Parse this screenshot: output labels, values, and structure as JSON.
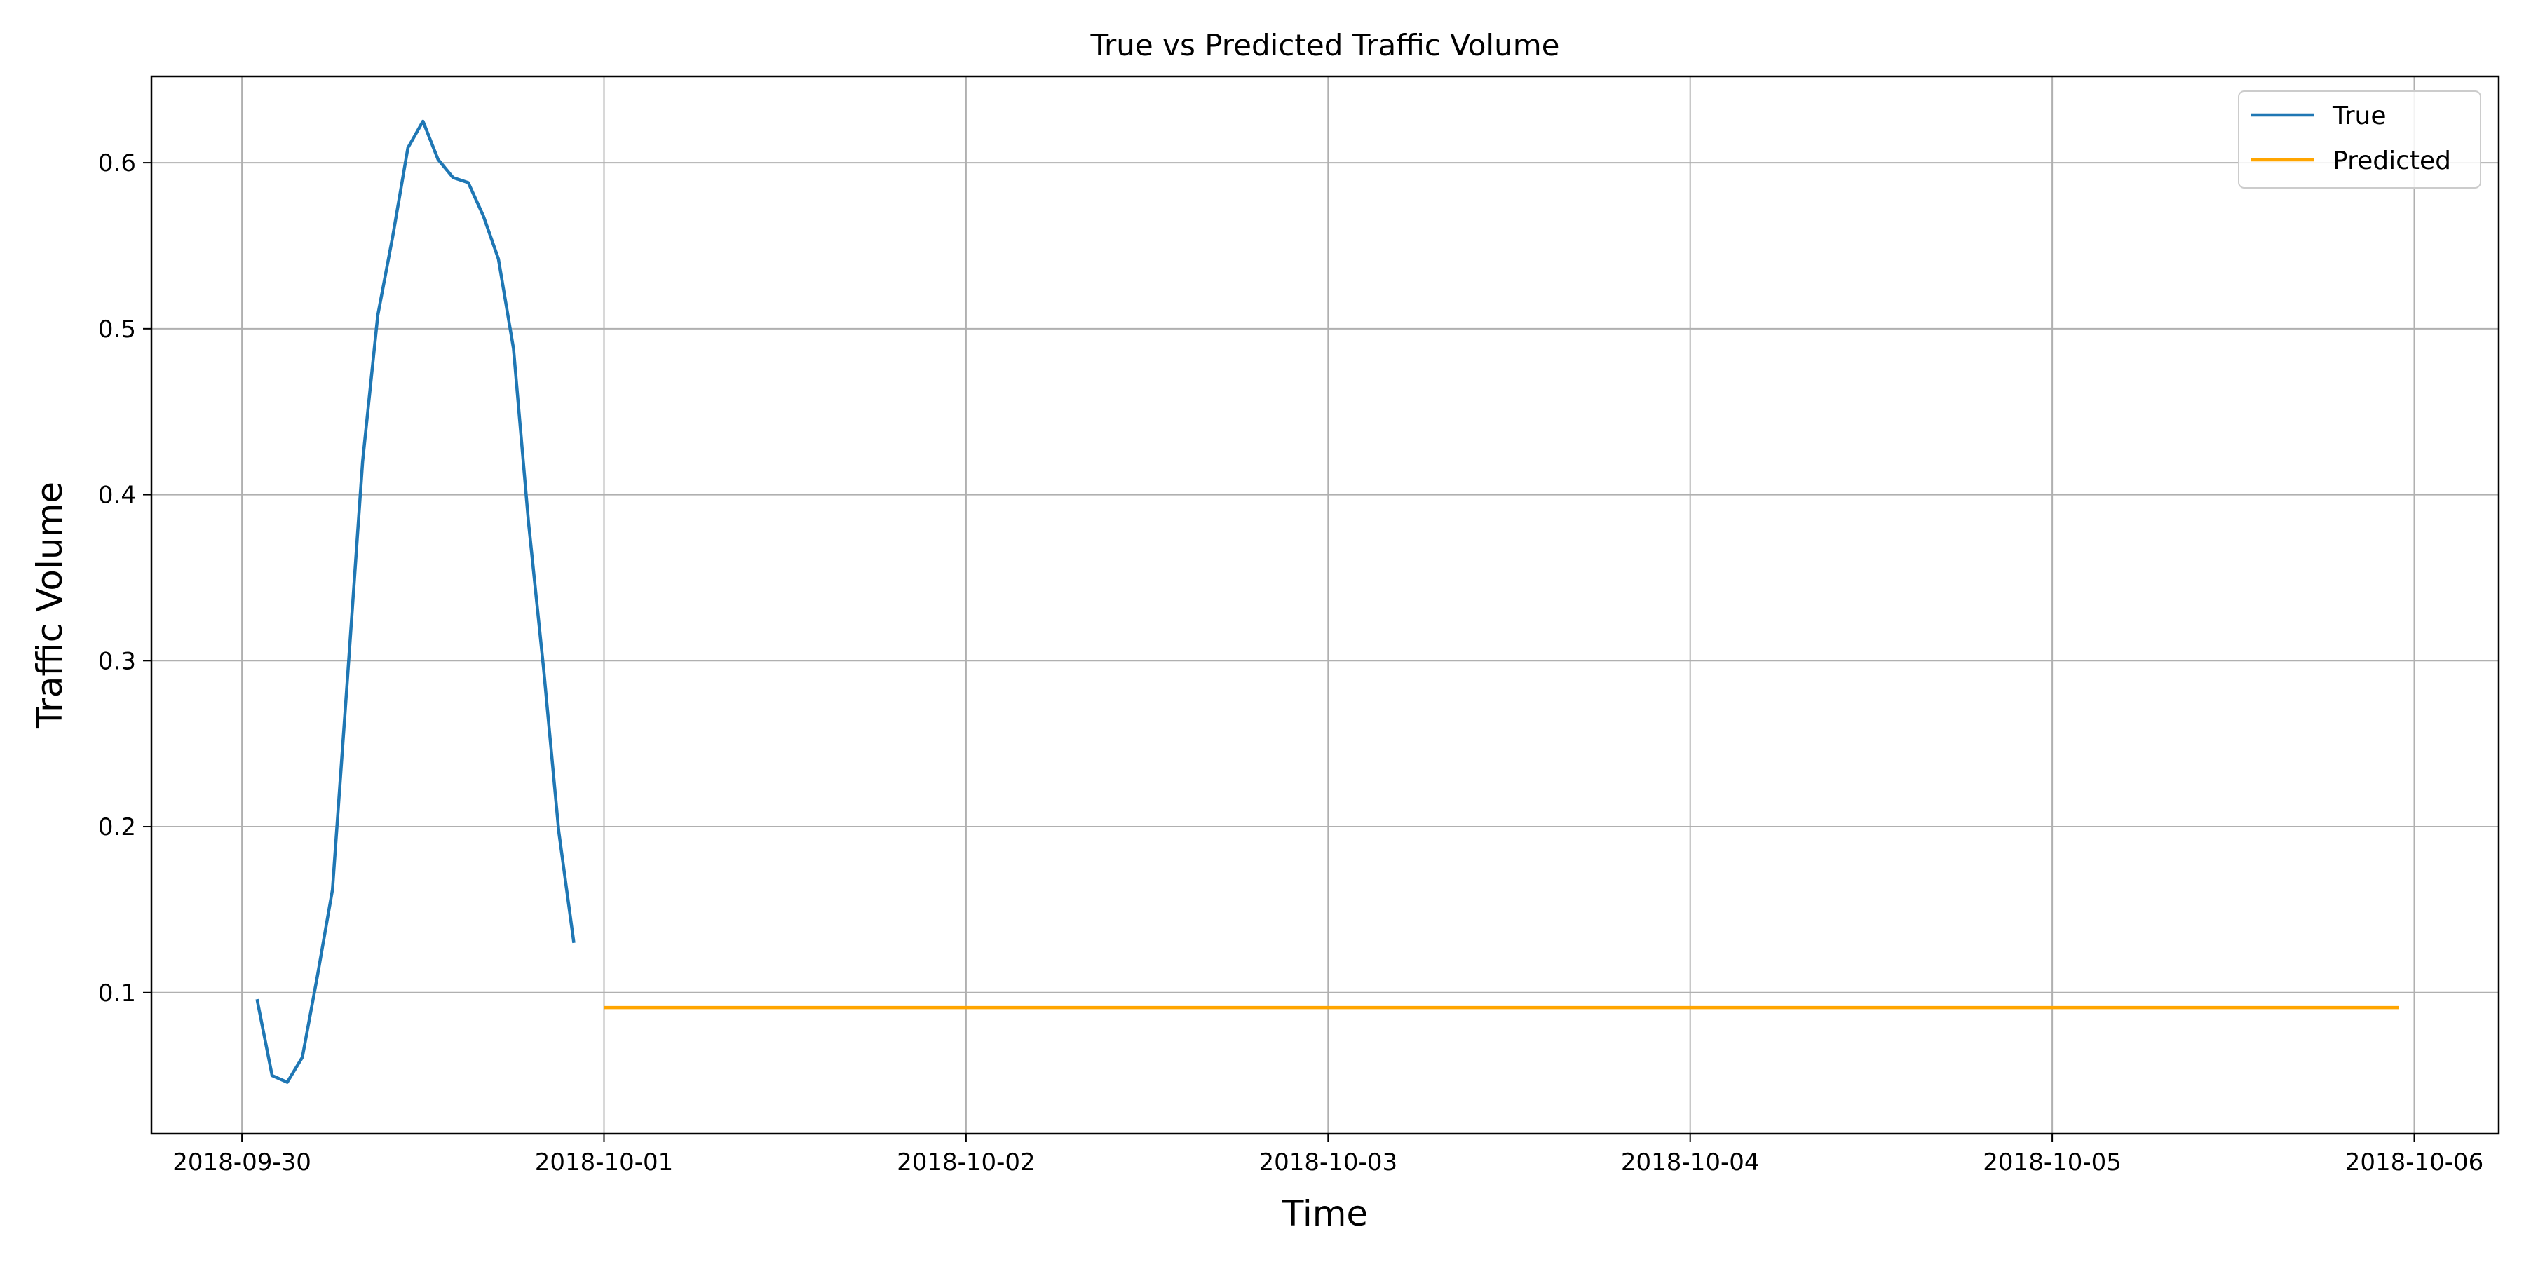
{
  "chart_data": {
    "type": "line",
    "title": "True vs Predicted Traffic Volume",
    "xlabel": "Time",
    "ylabel": "Traffic Volume",
    "x_ticks": [
      "2018-09-30",
      "2018-10-01",
      "2018-10-02",
      "2018-10-03",
      "2018-10-04",
      "2018-10-05",
      "2018-10-06"
    ],
    "y_ticks": [
      "0.1",
      "0.2",
      "0.3",
      "0.4",
      "0.5",
      "0.6"
    ],
    "xlim": [
      "2018-09-29 18:00",
      "2018-10-06 05:36"
    ],
    "ylim": [
      0.015,
      0.652
    ],
    "grid": true,
    "legend_position": "top-right",
    "series": [
      {
        "name": "True",
        "color": "#1f77b4",
        "points": [
          [
            "2018-09-30 01:00",
            0.096
          ],
          [
            "2018-09-30 02:00",
            0.05
          ],
          [
            "2018-09-30 03:00",
            0.046
          ],
          [
            "2018-09-30 04:00",
            0.061
          ],
          [
            "2018-09-30 05:00",
            0.11
          ],
          [
            "2018-09-30 06:00",
            0.162
          ],
          [
            "2018-09-30 07:00",
            0.29
          ],
          [
            "2018-09-30 08:00",
            0.42
          ],
          [
            "2018-09-30 09:00",
            0.508
          ],
          [
            "2018-09-30 10:00",
            0.556
          ],
          [
            "2018-09-30 11:00",
            0.609
          ],
          [
            "2018-09-30 12:00",
            0.625
          ],
          [
            "2018-09-30 13:00",
            0.602
          ],
          [
            "2018-09-30 14:00",
            0.591
          ],
          [
            "2018-09-30 15:00",
            0.588
          ],
          [
            "2018-09-30 16:00",
            0.568
          ],
          [
            "2018-09-30 17:00",
            0.542
          ],
          [
            "2018-09-30 18:00",
            0.488
          ],
          [
            "2018-09-30 19:00",
            0.383
          ],
          [
            "2018-09-30 20:00",
            0.295
          ],
          [
            "2018-09-30 21:00",
            0.197
          ],
          [
            "2018-09-30 22:00",
            0.13
          ]
        ]
      },
      {
        "name": "Predicted",
        "color": "#ffa500",
        "points": [
          [
            "2018-10-01 00:00",
            0.091
          ],
          [
            "2018-10-05 23:00",
            0.091
          ]
        ]
      }
    ]
  }
}
